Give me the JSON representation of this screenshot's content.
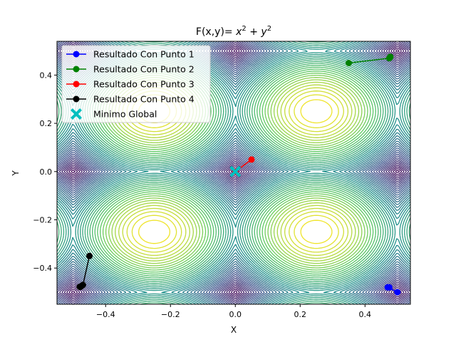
{
  "chart_data": {
    "type": "contour",
    "title": "F(x,y)= x^2 + y^2",
    "title_parts": {
      "prefix": "F(x,y)= ",
      "base1": "x",
      "exp1": "2",
      "plus": " + ",
      "base2": "y",
      "exp2": "2"
    },
    "xlabel": "X",
    "ylabel": "Y",
    "xlim": [
      -0.55,
      0.54
    ],
    "ylim": [
      -0.55,
      0.54
    ],
    "xticks": [
      -0.4,
      -0.2,
      0.0,
      0.2,
      0.4
    ],
    "yticks": [
      -0.4,
      -0.2,
      0.0,
      0.2,
      0.4
    ],
    "xtick_labels": [
      "−0.4",
      "−0.2",
      "0.0",
      "0.2",
      "0.4"
    ],
    "ytick_labels": [
      "−0.4",
      "−0.2",
      "0.0",
      "0.2",
      "0.4"
    ],
    "grid": false,
    "legend_position": "top-left",
    "series": [
      {
        "name": "Resultado Con Punto 1",
        "color": "#0000ff",
        "points": [
          [
            0.5,
            -0.5
          ],
          [
            0.47,
            -0.48
          ],
          [
            0.475,
            -0.48
          ]
        ]
      },
      {
        "name": "Resultado Con Punto 2",
        "color": "#008000",
        "points": [
          [
            0.35,
            0.45
          ],
          [
            0.475,
            0.47
          ],
          [
            0.477,
            0.472
          ],
          [
            0.478,
            0.475
          ],
          [
            0.478,
            0.476
          ]
        ]
      },
      {
        "name": "Resultado Con Punto 3",
        "color": "#ff0000",
        "points": [
          [
            0.05,
            0.05
          ],
          [
            0.0,
            0.0
          ]
        ]
      },
      {
        "name": "Resultado Con Punto 4",
        "color": "#000000",
        "points": [
          [
            -0.45,
            -0.35
          ],
          [
            -0.47,
            -0.47
          ],
          [
            -0.475,
            -0.475
          ],
          [
            -0.478,
            -0.478
          ],
          [
            -0.48,
            -0.478
          ]
        ]
      }
    ],
    "global_minimum": {
      "name": "Minimo Global",
      "color": "#00bfbf",
      "x": 0.0,
      "y": 0.0
    }
  }
}
